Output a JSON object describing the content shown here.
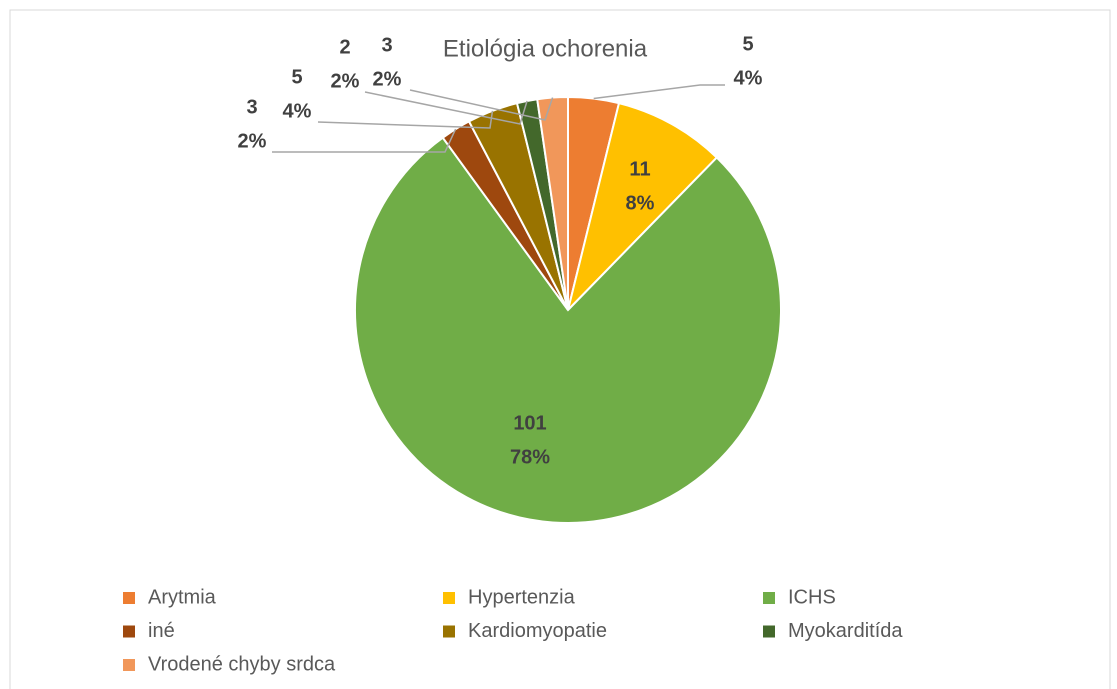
{
  "chart_data": {
    "type": "pie",
    "title": "Etiológia ochorenia",
    "categories": [
      "Arytmia",
      "Hypertenzia",
      "ICHS",
      "iné",
      "Kardiomyopatie",
      "Myokarditída",
      "Vrodené chyby srdca"
    ],
    "values": [
      5,
      11,
      101,
      3,
      5,
      2,
      3
    ],
    "percent_labels": [
      "4%",
      "8%",
      "78%",
      "2%",
      "4%",
      "2%",
      "2%"
    ],
    "colors": [
      "#ed7d31",
      "#ffc000",
      "#70ad47",
      "#9e480e",
      "#997300",
      "#43682b",
      "#f1975a"
    ],
    "legend": "bottom"
  }
}
